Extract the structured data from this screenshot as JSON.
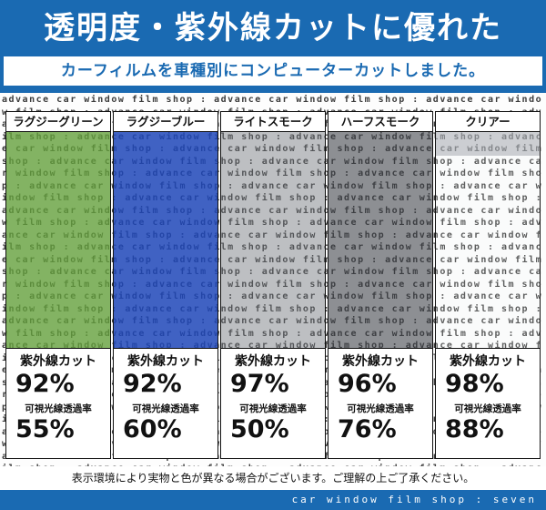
{
  "header": {
    "title": "透明度・紫外線カットに優れた",
    "subtitle": "カーフィルムを車種別にコンピューターカットしました。"
  },
  "watermark": {
    "text": "advance car window film shop : "
  },
  "labels": {
    "uv": "紫外線カット",
    "vlt": "可視光線透過率"
  },
  "columns": [
    {
      "label": "ラグジーグリーン",
      "tint": "rgba(100,160,60,0.80)",
      "uv_value": "92%",
      "vlt_value": "55%"
    },
    {
      "label": "ラグジーブルー",
      "tint": "rgba(30,70,185,0.85)",
      "uv_value": "92%",
      "vlt_value": "60%"
    },
    {
      "label": "ライトスモーク",
      "tint": "rgba(110,115,122,0.45)",
      "uv_value": "97%",
      "vlt_value": "50%"
    },
    {
      "label": "ハーフスモーク",
      "tint": "rgba(60,64,70,0.58)",
      "uv_value": "96%",
      "vlt_value": "76%"
    },
    {
      "label": "クリアー",
      "tint": "rgba(240,243,246,0.18)",
      "uv_value": "98%",
      "vlt_value": "88%"
    }
  ],
  "footer": {
    "disclaimer": "表示環境により実物と色が異なる場合がございます。ご理解の上ご了承ください。",
    "brand": "car window film shop : seven"
  },
  "colors": {
    "band_blue": "#1a6ab2",
    "watermark_gray": "#3c3c3c"
  }
}
